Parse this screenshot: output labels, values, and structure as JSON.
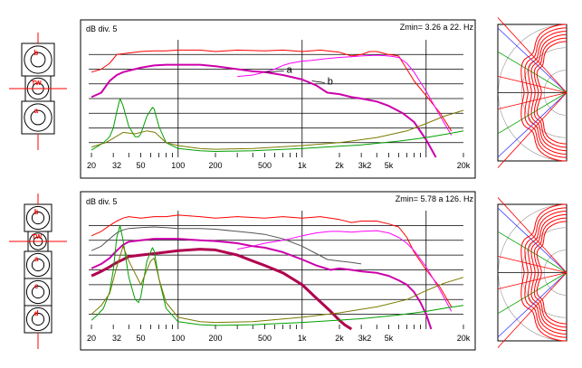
{
  "colors": {
    "frame": "#000000",
    "grid": "#000000",
    "red": "#ff0000",
    "magenta": "#ff00ff",
    "purple": "#cc00aa",
    "deep": "#b0004e",
    "green": "#00a000",
    "olive": "#7a7a00",
    "grey": "#555555",
    "blue": "#3333ff",
    "driver_label": "#ff0000"
  },
  "chart_data": [
    {
      "type": "line",
      "scale_label": "dB div. 5",
      "zmin_text": "Zmin= 3.26 a 22. Hz",
      "xscale": "log",
      "xlim": [
        19,
        20000
      ],
      "ylim": [
        0,
        8
      ],
      "x_tick_labels": [
        {
          "x": 20,
          "label": "20"
        },
        {
          "x": 32,
          "label": "32"
        },
        {
          "x": 50,
          "label": "50"
        },
        {
          "x": 100,
          "label": "100"
        },
        {
          "x": 200,
          "label": "200"
        },
        {
          "x": 500,
          "label": "500"
        },
        {
          "x": 1000,
          "label": "1k"
        },
        {
          "x": 2000,
          "label": "2k"
        },
        {
          "x": 3200,
          "label": "3k2"
        },
        {
          "x": 5000,
          "label": "5k"
        },
        {
          "x": 20000,
          "label": "20k"
        }
      ],
      "annotations": [
        {
          "text": "a",
          "x": 750,
          "y": 6.0,
          "target_x": 500,
          "target_y": 5.8
        },
        {
          "text": "b",
          "x": 1600,
          "y": 5.2,
          "target_x": 1200,
          "target_y": 5.2
        }
      ],
      "series": [
        {
          "color": "red",
          "width": 1,
          "x": [
            20,
            24,
            28,
            32,
            40,
            50,
            64,
            80,
            100,
            150,
            200,
            300,
            500,
            700,
            1000,
            1400,
            2000,
            2500,
            3000,
            3500,
            4000,
            5000,
            6000,
            7000,
            8000,
            10000,
            13000,
            16000
          ],
          "y": [
            5.8,
            6.0,
            6.4,
            7.0,
            7.1,
            7.2,
            7.25,
            7.25,
            7.3,
            7.3,
            7.2,
            7.3,
            7.25,
            7.3,
            7.2,
            7.3,
            7.15,
            6.9,
            7.0,
            7.2,
            7.2,
            7.0,
            6.9,
            6.0,
            5.2,
            4.2,
            3.0,
            1.8
          ]
        },
        {
          "color": "magenta",
          "width": 1,
          "x": [
            300,
            400,
            500,
            600,
            700,
            800,
            1000,
            1200,
            1500,
            2000,
            2500,
            3000,
            4000,
            5000,
            6000,
            7000,
            8000,
            10000,
            13000,
            16000
          ],
          "y": [
            5.5,
            5.6,
            5.8,
            6.0,
            6.25,
            6.4,
            6.55,
            6.6,
            6.7,
            6.8,
            6.85,
            6.9,
            6.95,
            6.9,
            6.8,
            6.4,
            5.8,
            4.5,
            2.8,
            1.5
          ]
        },
        {
          "color": "purple",
          "width": 2,
          "x": [
            20,
            24,
            28,
            32,
            36,
            40,
            50,
            64,
            80,
            100,
            150,
            200,
            300,
            400,
            500,
            700,
            1000,
            1300,
            1600,
            2000,
            2500,
            3000,
            4000,
            5000,
            6500,
            8000,
            10000,
            12000
          ],
          "y": [
            4.1,
            4.4,
            5.2,
            5.6,
            5.8,
            5.9,
            6.1,
            6.25,
            6.3,
            6.3,
            6.3,
            6.2,
            6.0,
            5.85,
            5.8,
            5.6,
            5.3,
            4.9,
            4.4,
            4.3,
            4.1,
            4.0,
            3.8,
            3.5,
            3.0,
            2.4,
            1.2,
            0.0
          ]
        },
        {
          "color": "green",
          "width": 1,
          "x": [
            20,
            22,
            25,
            28,
            30,
            32,
            34,
            36,
            40,
            45,
            48,
            50,
            56,
            62,
            64,
            70,
            80,
            100,
            150,
            200,
            400,
            1000,
            3000,
            6000,
            10000,
            15000,
            20000
          ],
          "y": [
            0.5,
            0.7,
            1.0,
            1.4,
            2.0,
            3.1,
            4.0,
            3.5,
            2.1,
            1.4,
            1.4,
            1.6,
            2.8,
            3.4,
            3.3,
            2.1,
            1.0,
            0.6,
            0.45,
            0.4,
            0.45,
            0.6,
            0.85,
            1.1,
            1.35,
            1.6,
            1.8
          ]
        },
        {
          "color": "olive",
          "width": 1,
          "x": [
            20,
            26,
            30,
            36,
            45,
            56,
            65,
            80,
            100,
            150,
            200,
            400,
            1000,
            2000,
            4000,
            7000,
            10000,
            14000,
            20000
          ],
          "y": [
            0.7,
            1.0,
            1.3,
            1.7,
            1.6,
            1.8,
            1.7,
            1.0,
            0.8,
            0.6,
            0.55,
            0.6,
            0.8,
            1.0,
            1.35,
            1.8,
            2.3,
            2.8,
            3.2
          ]
        }
      ]
    },
    {
      "type": "line",
      "scale_label": "dB div. 5",
      "zmin_text": "Zmin= 5.78 a 126. Hz",
      "xscale": "log",
      "xlim": [
        19,
        20000
      ],
      "ylim": [
        0,
        8
      ],
      "x_tick_labels": [
        {
          "x": 20,
          "label": "20"
        },
        {
          "x": 32,
          "label": "32"
        },
        {
          "x": 50,
          "label": "50"
        },
        {
          "x": 100,
          "label": "100"
        },
        {
          "x": 200,
          "label": "200"
        },
        {
          "x": 500,
          "label": "500"
        },
        {
          "x": 1000,
          "label": "1k"
        },
        {
          "x": 2000,
          "label": "2k"
        },
        {
          "x": 3200,
          "label": "3k2"
        },
        {
          "x": 5000,
          "label": "5k"
        },
        {
          "x": 20000,
          "label": "20k"
        }
      ],
      "annotations": [],
      "series": [
        {
          "color": "red",
          "width": 1,
          "x": [
            20,
            24,
            28,
            32,
            36,
            40,
            50,
            64,
            80,
            100,
            150,
            200,
            300,
            500,
            700,
            1000,
            1400,
            2000,
            2500,
            3000,
            4000,
            5000,
            6000,
            7000,
            8000,
            10000,
            13000,
            16000
          ],
          "y": [
            6.3,
            6.6,
            7.0,
            7.3,
            7.5,
            7.6,
            7.5,
            7.6,
            7.6,
            7.7,
            7.6,
            7.5,
            7.6,
            7.5,
            7.6,
            7.5,
            7.6,
            7.4,
            7.2,
            7.3,
            7.3,
            7.1,
            6.9,
            6.2,
            5.2,
            4.0,
            2.8,
            1.5
          ]
        },
        {
          "color": "grey",
          "width": 1,
          "x": [
            20,
            24,
            28,
            32,
            36,
            40,
            50,
            64,
            80,
            100,
            150,
            200,
            300,
            400,
            500,
            700,
            1000,
            1300,
            1600,
            2000,
            2500,
            3000
          ],
          "y": [
            5.3,
            5.6,
            6.1,
            6.5,
            6.7,
            6.8,
            6.85,
            6.9,
            6.85,
            6.8,
            6.8,
            6.75,
            6.6,
            6.5,
            6.4,
            6.1,
            5.6,
            5.1,
            4.7,
            4.6,
            4.5,
            4.4
          ]
        },
        {
          "color": "magenta",
          "width": 1,
          "x": [
            300,
            400,
            500,
            700,
            1000,
            1300,
            1700,
            2000,
            2500,
            3000,
            4000,
            5000,
            6000,
            7000,
            8000,
            10000,
            13000,
            16000
          ],
          "y": [
            5.4,
            5.6,
            5.8,
            6.0,
            6.3,
            6.5,
            6.6,
            6.6,
            6.55,
            6.6,
            6.65,
            6.5,
            6.2,
            5.8,
            5.3,
            4.2,
            2.6,
            1.2
          ]
        },
        {
          "color": "purple",
          "width": 2,
          "x": [
            20,
            24,
            28,
            32,
            36,
            40,
            50,
            64,
            80,
            100,
            150,
            200,
            300,
            400,
            500,
            700,
            1000,
            1300,
            1700,
            2000,
            2500,
            3000,
            4000,
            5000,
            6000,
            7000,
            8000,
            9000,
            10000,
            11000
          ],
          "y": [
            4.1,
            4.4,
            4.8,
            5.3,
            5.7,
            5.9,
            6.0,
            6.1,
            6.1,
            6.1,
            6.0,
            5.95,
            5.8,
            5.6,
            5.5,
            5.2,
            4.7,
            4.3,
            4.0,
            4.1,
            4.0,
            3.9,
            3.8,
            3.6,
            3.3,
            3.0,
            2.5,
            1.8,
            1.0,
            0.0
          ]
        },
        {
          "color": "deep",
          "width": 3,
          "x": [
            20,
            24,
            28,
            32,
            36,
            40,
            50,
            64,
            80,
            100,
            150,
            200,
            300,
            400,
            500,
            700,
            1000,
            1300,
            1700,
            2000,
            2200,
            2500
          ],
          "y": [
            3.6,
            3.9,
            4.2,
            4.5,
            4.7,
            4.9,
            5.0,
            5.1,
            5.2,
            5.3,
            5.4,
            5.35,
            5.0,
            4.6,
            4.3,
            3.8,
            3.0,
            2.1,
            1.2,
            0.6,
            0.3,
            0.0
          ]
        },
        {
          "color": "green",
          "width": 1,
          "x": [
            20,
            22,
            25,
            28,
            30,
            32,
            34,
            36,
            40,
            45,
            48,
            50,
            56,
            62,
            64,
            70,
            80,
            100,
            150,
            200,
            400,
            1000,
            3000,
            6000,
            10000,
            15000,
            20000
          ],
          "y": [
            0.6,
            0.9,
            1.4,
            2.5,
            4.0,
            6.2,
            7.0,
            6.0,
            3.5,
            2.0,
            1.8,
            2.2,
            4.6,
            5.5,
            5.3,
            3.4,
            1.4,
            0.5,
            0.3,
            0.25,
            0.3,
            0.45,
            0.7,
            0.95,
            1.2,
            1.45,
            1.6
          ]
        },
        {
          "color": "olive",
          "width": 1,
          "x": [
            20,
            24,
            28,
            32,
            36,
            40,
            50,
            60,
            64,
            70,
            80,
            100,
            150,
            200,
            400,
            1000,
            2000,
            4000,
            7000,
            10000,
            14000,
            20000
          ],
          "y": [
            1.0,
            1.6,
            2.4,
            4.2,
            5.6,
            4.6,
            3.0,
            4.6,
            4.8,
            3.4,
            1.8,
            0.8,
            0.5,
            0.45,
            0.5,
            0.8,
            1.1,
            1.5,
            2.0,
            2.6,
            3.1,
            3.5
          ]
        }
      ]
    }
  ],
  "drivers": {
    "top": [
      {
        "label": "b"
      },
      {
        "label": "TW"
      },
      {
        "label": "a"
      }
    ],
    "bottom": [
      {
        "label": "b"
      },
      {
        "label": "TW"
      },
      {
        "label": "a"
      },
      {
        "label": "c"
      },
      {
        "label": "d"
      }
    ]
  }
}
